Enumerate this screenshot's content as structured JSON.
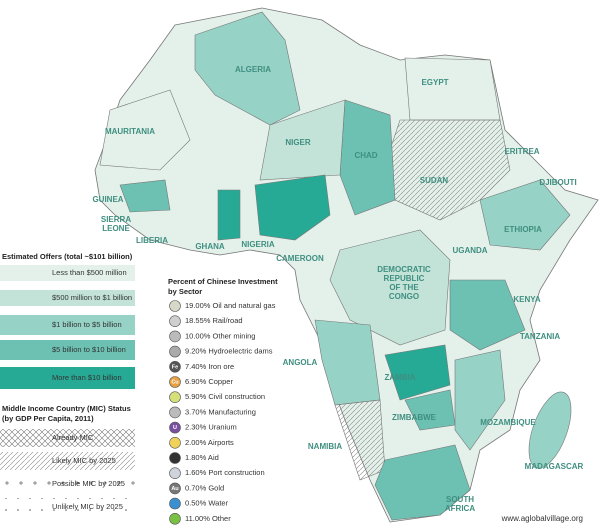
{
  "country_labels": [
    [
      "ALGERIA"
    ],
    [
      "EGYPT"
    ],
    [
      "ERITREA"
    ],
    [
      "MAURITANIA"
    ],
    [
      "NIGER"
    ],
    [
      "CHAD"
    ],
    [
      "SUDAN"
    ],
    [
      "DJIBOUTI"
    ],
    [
      "GUINEA"
    ],
    [
      "SIERRA",
      "LEONE"
    ],
    [
      "LIBERIA"
    ],
    [
      "GHANA"
    ],
    [
      "NIGERIA"
    ],
    [
      "CAMEROON"
    ],
    [
      "ETHIOPIA"
    ],
    [
      "UGANDA"
    ],
    [
      "DEMOCRATIC",
      "REPUBLIC",
      "OF THE",
      "CONGO"
    ],
    [
      "KENYA"
    ],
    [
      "TANZANIA"
    ],
    [
      "ANGOLA"
    ],
    [
      "ZAMBIA"
    ],
    [
      "ZIMBABWE"
    ],
    [
      "MOZAMBIQUE"
    ],
    [
      "NAMIBIA"
    ],
    [
      "MADAGASCAR"
    ],
    [
      "SOUTH",
      "AFRICA"
    ]
  ],
  "offers_legend": {
    "title": "Estimated Offers (total ~$101 billion)",
    "items": [
      {
        "label": "Less than $500 million",
        "color": "#e3f1ea"
      },
      {
        "label": "$500 million to $1 billion",
        "color": "#c3e3d8"
      },
      {
        "label": "$1 billion to $5 billion",
        "color": "#96d2c6"
      },
      {
        "label": "$5 billion to $10 billion",
        "color": "#6cc1b3"
      },
      {
        "label": "More than $10 billion",
        "color": "#27aa95"
      }
    ]
  },
  "mic_legend": {
    "title": [
      "Middle Income Country (MIC) Status",
      "(by GDP Per Capita, 2011)"
    ],
    "items": [
      {
        "label": "Already MIC",
        "pattern": "cross"
      },
      {
        "label": "Likely MIC by 2025",
        "pattern": "diag"
      },
      {
        "label": "Possible MIC by 2025",
        "pattern": "plus"
      },
      {
        "label": "Unlikely MIC by 2025",
        "pattern": "dot"
      }
    ]
  },
  "sector_legend": {
    "title": [
      "Percent of Chinese Investment",
      "by Sector"
    ],
    "items": [
      {
        "text": "19.00% Oil and natural gas",
        "icon": "",
        "color": "#d8d8c8"
      },
      {
        "text": "18.55% Rail/road",
        "icon": "",
        "color": "#cfcfcf"
      },
      {
        "text": "10.00% Other mining",
        "icon": "",
        "color": "#bbbbbb"
      },
      {
        "text": "9.20% Hydroelectric dams",
        "icon": "",
        "color": "#aaaaaa"
      },
      {
        "text": "7.40% Iron ore",
        "icon": "Fe",
        "color": "#555555"
      },
      {
        "text": "6.90% Copper",
        "icon": "Cu",
        "color": "#e8a040"
      },
      {
        "text": "5.90% Civil construction",
        "icon": "",
        "color": "#d6e07a"
      },
      {
        "text": "3.70% Manufacturing",
        "icon": "",
        "color": "#bbbbbb"
      },
      {
        "text": "2.30% Uranium",
        "icon": "U",
        "color": "#7b4fa0"
      },
      {
        "text": "2.00% Airports",
        "icon": "",
        "color": "#f0d25a"
      },
      {
        "text": "1.80% Aid",
        "icon": "",
        "color": "#333333"
      },
      {
        "text": "1.60% Port construction",
        "icon": "",
        "color": "#cfd3dc"
      },
      {
        "text": "0.70% Gold",
        "icon": "Au",
        "color": "#777777"
      },
      {
        "text": "0.50% Water",
        "icon": "",
        "color": "#3a90d0"
      },
      {
        "text": "11.00% Other",
        "icon": "",
        "color": "#7ac043"
      }
    ]
  },
  "credit": "www.aglobalvillage.org"
}
